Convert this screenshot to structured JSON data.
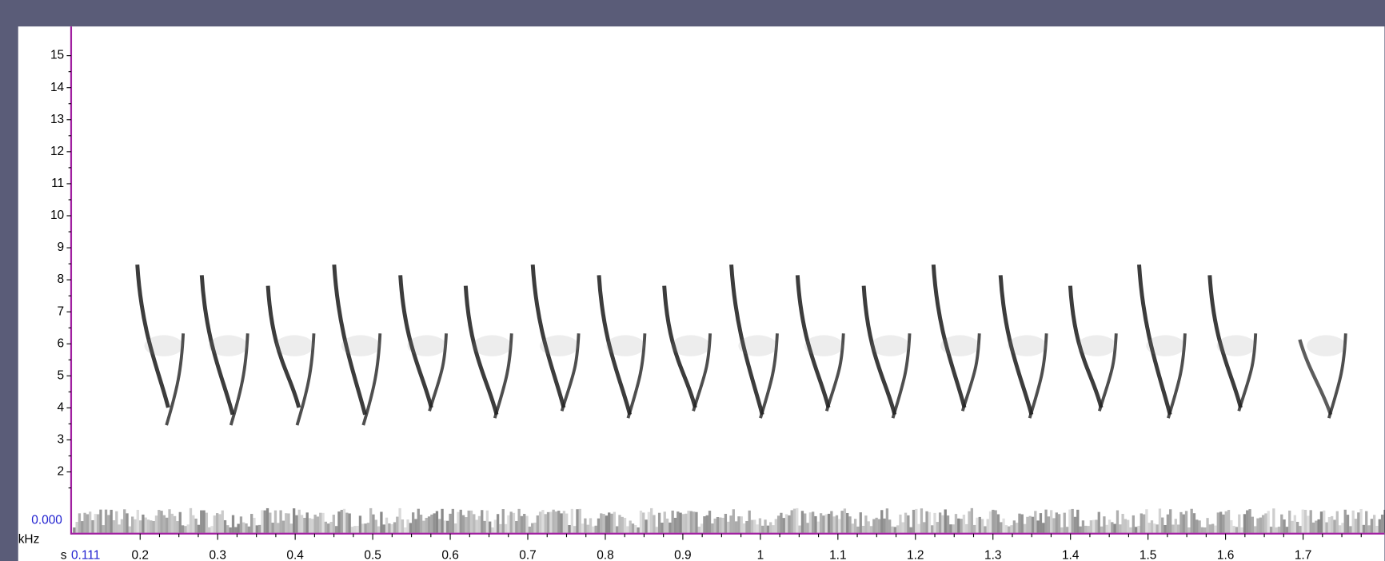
{
  "chart_data": {
    "type": "spectrogram",
    "y_axis_label": "kHz",
    "x_axis_label": "s",
    "x_start_label": "0.111",
    "y_start_label": "0.000",
    "ylim": [
      0,
      15.9
    ],
    "yticks": [
      2,
      3,
      4,
      5,
      6,
      7,
      8,
      9,
      10,
      11,
      12,
      13,
      14,
      15
    ],
    "xlim": [
      0.111,
      1.805
    ],
    "xticks": [
      0.2,
      0.3,
      0.4,
      0.5,
      0.6,
      0.7,
      0.8,
      0.9,
      1,
      1.1,
      1.2,
      1.3,
      1.4,
      1.5,
      1.6,
      1.7
    ],
    "axis_color": "#a020a0",
    "start_label_color": "#2020d0"
  }
}
